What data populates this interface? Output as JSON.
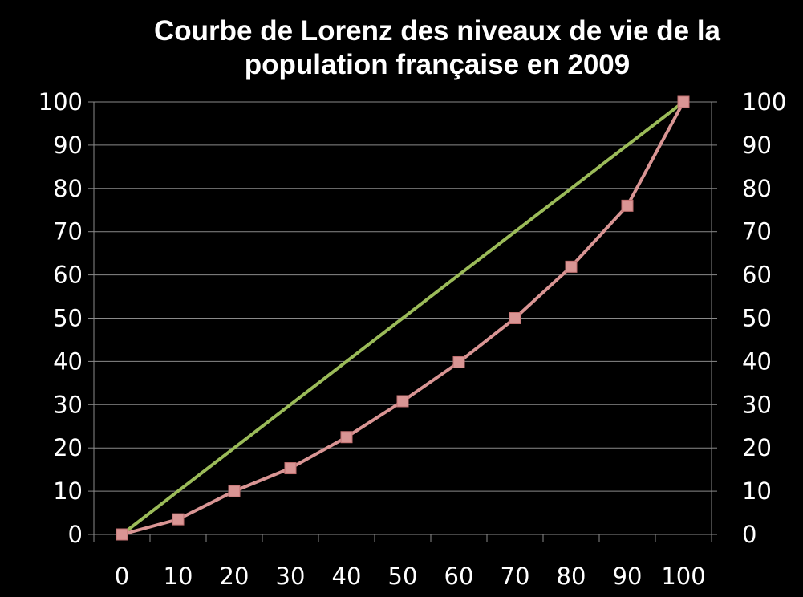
{
  "chart_data": {
    "type": "line",
    "title_line1": "Courbe de Lorenz des niveaux de vie de la",
    "title_line2": "population française en 2009",
    "xlabel": "",
    "ylabel": "",
    "categories": [
      "0",
      "10",
      "20",
      "30",
      "40",
      "50",
      "60",
      "70",
      "80",
      "90",
      "100"
    ],
    "x_ticks": [
      0,
      10,
      20,
      30,
      40,
      50,
      60,
      70,
      80,
      90,
      100
    ],
    "y_ticks": [
      0,
      10,
      20,
      30,
      40,
      50,
      60,
      70,
      80,
      90,
      100
    ],
    "ylim": [
      0,
      100
    ],
    "secondary_y_axis": true,
    "grid": "horizontal",
    "series": [
      {
        "values": [
          0,
          10,
          20,
          30,
          40,
          50,
          60,
          70,
          80,
          90,
          100
        ],
        "color": "#9BBB59",
        "marker": "none"
      },
      {
        "values": [
          0,
          3.5,
          10,
          15.3,
          22.5,
          30.8,
          39.8,
          50,
          61.9,
          76,
          100
        ],
        "color": "#D99594",
        "marker": "square"
      }
    ]
  }
}
